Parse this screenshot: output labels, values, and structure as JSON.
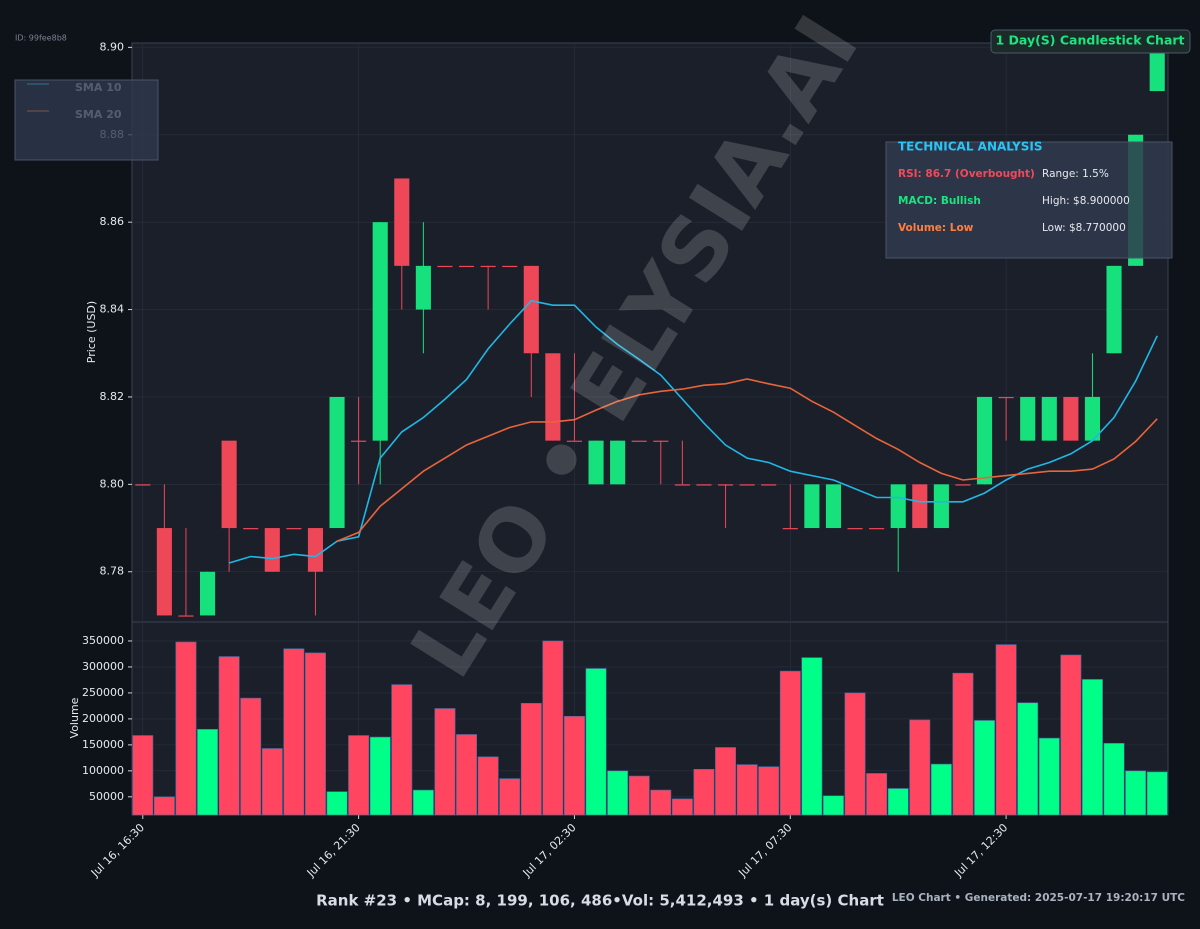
{
  "page": {
    "id": "ID: 99fee8b8",
    "watermark": "LEO • ELYSIA.AI",
    "footer": "Rank #23 • MCap: 8, 199, 106, 486•Vol: 5,412,493 • 1 day(s) Chart",
    "credit": "LEO Chart • Generated: 2025-07-17 19:20:17 UTC"
  },
  "chart_data": [
    {
      "type": "candlestick",
      "title": "1 Day(S) Candlestick Chart",
      "ylabel": "Price (USD)",
      "categories": [
        "Jul 16, 16:30",
        null,
        null,
        null,
        null,
        null,
        null,
        null,
        null,
        null,
        "Jul 16, 21:30",
        null,
        null,
        null,
        null,
        null,
        null,
        null,
        null,
        null,
        "Jul 17, 02:30",
        null,
        null,
        null,
        null,
        null,
        null,
        null,
        null,
        null,
        "Jul 17, 07:30",
        null,
        null,
        null,
        null,
        null,
        null,
        null,
        null,
        null,
        "Jul 17, 12:30",
        null,
        null,
        null,
        null,
        null,
        null,
        null
      ],
      "open": [
        8.8,
        8.79,
        8.77,
        8.77,
        8.81,
        8.79,
        8.79,
        8.79,
        8.79,
        8.79,
        8.81,
        8.81,
        8.87,
        8.84,
        8.85,
        8.85,
        8.85,
        8.85,
        8.85,
        8.83,
        8.81,
        8.8,
        8.8,
        8.81,
        8.81,
        8.8,
        8.8,
        8.8,
        8.8,
        8.8,
        8.79,
        8.79,
        8.79,
        8.79,
        8.79,
        8.79,
        8.8,
        8.79,
        8.8,
        8.8,
        8.82,
        8.81,
        8.81,
        8.82,
        8.81,
        8.83,
        8.85,
        8.89
      ],
      "high": [
        8.8,
        8.8,
        8.79,
        8.78,
        8.81,
        8.79,
        8.79,
        8.79,
        8.79,
        8.82,
        8.82,
        8.86,
        8.87,
        8.86,
        8.85,
        8.85,
        8.85,
        8.85,
        8.85,
        8.83,
        8.83,
        8.81,
        8.81,
        8.81,
        8.81,
        8.81,
        8.8,
        8.8,
        8.8,
        8.8,
        8.8,
        8.8,
        8.8,
        8.79,
        8.79,
        8.8,
        8.8,
        8.8,
        8.8,
        8.82,
        8.82,
        8.82,
        8.82,
        8.82,
        8.83,
        8.85,
        8.88,
        8.9
      ],
      "low": [
        8.8,
        8.77,
        8.77,
        8.77,
        8.78,
        8.79,
        8.78,
        8.79,
        8.77,
        8.79,
        8.8,
        8.8,
        8.84,
        8.83,
        8.85,
        8.85,
        8.84,
        8.85,
        8.82,
        8.81,
        8.81,
        8.8,
        8.8,
        8.81,
        8.8,
        8.8,
        8.8,
        8.79,
        8.8,
        8.8,
        8.79,
        8.79,
        8.79,
        8.79,
        8.79,
        8.78,
        8.79,
        8.79,
        8.8,
        8.8,
        8.81,
        8.81,
        8.81,
        8.81,
        8.81,
        8.83,
        8.85,
        8.89
      ],
      "close": [
        8.8,
        8.77,
        8.77,
        8.78,
        8.79,
        8.79,
        8.78,
        8.79,
        8.78,
        8.82,
        8.81,
        8.86,
        8.85,
        8.85,
        8.85,
        8.85,
        8.85,
        8.85,
        8.83,
        8.81,
        8.81,
        8.81,
        8.81,
        8.81,
        8.81,
        8.8,
        8.8,
        8.8,
        8.8,
        8.8,
        8.79,
        8.8,
        8.8,
        8.79,
        8.79,
        8.8,
        8.79,
        8.8,
        8.8,
        8.82,
        8.82,
        8.82,
        8.82,
        8.81,
        8.82,
        8.85,
        8.88,
        8.9
      ],
      "up_color": "#17e17c",
      "down_color": "#ee4758",
      "series": [
        {
          "name": "SMA 10",
          "color": "#1fb8e6",
          "values": [
            null,
            null,
            null,
            null,
            8.782,
            8.7835,
            8.783,
            8.784,
            8.7835,
            8.787,
            8.788,
            8.806,
            8.812,
            8.8153,
            8.8195,
            8.824,
            8.831,
            8.8367,
            8.842,
            8.841,
            8.841,
            8.836,
            8.832,
            8.8286,
            8.825,
            8.8195,
            8.814,
            8.809,
            8.806,
            8.805,
            8.803,
            8.802,
            8.801,
            8.799,
            8.797,
            8.797,
            8.796,
            8.796,
            8.796,
            8.798,
            8.801,
            8.8035,
            8.805,
            8.807,
            8.81,
            8.8153,
            8.8236,
            8.834
          ]
        },
        {
          "name": "SMA 20",
          "color": "#e8643a",
          "values": [
            null,
            null,
            null,
            null,
            null,
            null,
            null,
            null,
            null,
            8.787,
            8.789,
            8.795,
            8.799,
            8.803,
            8.806,
            8.809,
            8.811,
            8.813,
            8.8143,
            8.8143,
            8.8148,
            8.817,
            8.819,
            8.8205,
            8.8213,
            8.8218,
            8.8227,
            8.823,
            8.8241,
            8.823,
            8.822,
            8.819,
            8.8165,
            8.8135,
            8.8105,
            8.808,
            8.805,
            8.8025,
            8.801,
            8.8015,
            8.802,
            8.8025,
            8.803,
            8.803,
            8.8035,
            8.8058,
            8.8098,
            8.815
          ]
        }
      ],
      "ylim": [
        8.7685,
        8.901
      ],
      "yticks": [
        8.78,
        {
          "value": 8.8,
          "label": "8.80"
        },
        8.82,
        8.84,
        8.86,
        8.88,
        {
          "value": 8.9,
          "label": "8.90"
        }
      ],
      "grid": true,
      "legend": "upper left",
      "annotations": {
        "title": "TECHNICAL ANALYSIS",
        "rsi": "RSI: 86.7 (Overbought)",
        "range": "Range: 1.5%",
        "macd": "MACD: Bullish",
        "high": "High: $8.900000",
        "volume": "Volume: Low",
        "low": "Low: $8.770000"
      }
    },
    {
      "type": "bar",
      "ylabel": "Volume",
      "values": [
        168000,
        50000,
        348000,
        180000,
        320000,
        240000,
        143000,
        335000,
        327000,
        60000,
        168000,
        165000,
        266000,
        63000,
        220000,
        170000,
        127000,
        85000,
        230000,
        350000,
        205000,
        297000,
        100000,
        90000,
        63000,
        46000,
        103000,
        145000,
        112000,
        108000,
        292000,
        318000,
        52000,
        250000,
        95000,
        66000,
        198000,
        113000,
        288000,
        197000,
        343000,
        231000,
        163000,
        323000,
        276000,
        153000,
        100000,
        98000
      ],
      "up_color": "#00ff88",
      "down_color": "#ff4560",
      "ylim": [
        15000,
        386500
      ],
      "yticks": [
        50000,
        100000,
        150000,
        200000,
        250000,
        300000,
        350000
      ],
      "grid": true
    }
  ]
}
